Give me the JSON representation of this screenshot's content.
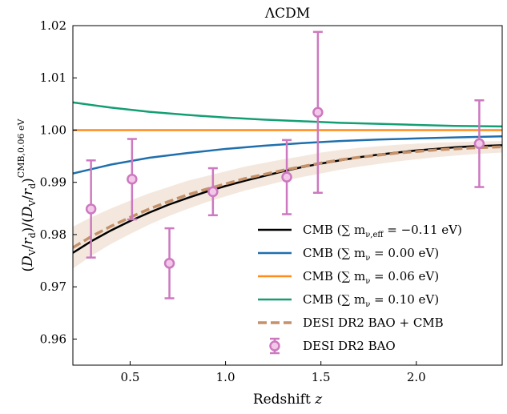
{
  "chart_data": {
    "type": "line",
    "title": "ΛCDM",
    "xlabel": "Redshift z",
    "ylabel": "(D_V/r_d)/(D_V/r_d)^CMB,0.06 eV",
    "xlim": [
      0.2,
      2.45
    ],
    "ylim": [
      0.955,
      1.02
    ],
    "xticks": [
      0.5,
      1.0,
      1.5,
      2.0
    ],
    "xtick_labels": [
      "0.5",
      "1.0",
      "1.5",
      "2.0"
    ],
    "yticks": [
      0.96,
      0.97,
      0.98,
      0.99,
      1.0,
      1.01,
      1.02
    ],
    "ytick_labels": [
      "0.96",
      "0.97",
      "0.98",
      "0.99",
      "1.00",
      "1.01",
      "1.02"
    ],
    "legend_position": "lower-right",
    "series": [
      {
        "name": "CMB (∑ m_ν,eff = −0.11 eV)",
        "legend_label": "CMB (∑ m",
        "legend_sub": "ν,eff",
        "legend_rest": " = −0.11 eV)",
        "color": "#000000",
        "style": "solid",
        "x": [
          0.2,
          0.3,
          0.4,
          0.5,
          0.6,
          0.7,
          0.8,
          0.9,
          1.0,
          1.1,
          1.2,
          1.3,
          1.4,
          1.5,
          1.6,
          1.7,
          1.8,
          1.9,
          2.0,
          2.1,
          2.2,
          2.3,
          2.45
        ],
        "y": [
          0.9765,
          0.9788,
          0.9808,
          0.9826,
          0.9842,
          0.9857,
          0.987,
          0.9882,
          0.9893,
          0.9903,
          0.9912,
          0.9921,
          0.9929,
          0.9936,
          0.9942,
          0.9948,
          0.9953,
          0.9957,
          0.9961,
          0.9964,
          0.9967,
          0.9969,
          0.9971
        ]
      },
      {
        "name": "CMB (∑ m_ν = 0.00 eV)",
        "legend_label": "CMB (∑ m",
        "legend_sub": "ν",
        "legend_rest": " = 0.00 eV)",
        "color": "#1f6fad",
        "style": "solid",
        "x": [
          0.2,
          0.4,
          0.6,
          0.8,
          1.0,
          1.2,
          1.4,
          1.6,
          1.8,
          2.0,
          2.2,
          2.45
        ],
        "y": [
          0.9917,
          0.9934,
          0.9947,
          0.9956,
          0.9964,
          0.997,
          0.9975,
          0.9979,
          0.9982,
          0.9984,
          0.9986,
          0.9988
        ]
      },
      {
        "name": "CMB (∑ m_ν = 0.06 eV)",
        "legend_label": "CMB (∑ m",
        "legend_sub": "ν",
        "legend_rest": " = 0.06 eV)",
        "color": "#ff8c1a",
        "style": "solid",
        "x": [
          0.2,
          2.45
        ],
        "y": [
          1.0,
          1.0
        ]
      },
      {
        "name": "CMB (∑ m_ν = 0.10 eV)",
        "legend_label": "CMB (∑ m",
        "legend_sub": "ν",
        "legend_rest": " = 0.10 eV)",
        "color": "#139e74",
        "style": "solid",
        "x": [
          0.2,
          0.4,
          0.6,
          0.8,
          1.0,
          1.2,
          1.4,
          1.6,
          1.8,
          2.0,
          2.2,
          2.45
        ],
        "y": [
          1.0053,
          1.0043,
          1.0035,
          1.0029,
          1.0024,
          1.002,
          1.0017,
          1.0014,
          1.0012,
          1.001,
          1.0008,
          1.0007
        ]
      },
      {
        "name": "DESI DR2 BAO + CMB",
        "legend_label": "DESI DR2 BAO + CMB",
        "color": "#c4916a",
        "style": "dashed",
        "band_color": "#f1e2d6",
        "x": [
          0.2,
          0.3,
          0.4,
          0.5,
          0.6,
          0.7,
          0.8,
          0.9,
          1.0,
          1.1,
          1.2,
          1.3,
          1.4,
          1.5,
          1.6,
          1.7,
          1.8,
          1.9,
          2.0,
          2.1,
          2.2,
          2.3,
          2.45
        ],
        "y": [
          0.9775,
          0.9797,
          0.9816,
          0.9833,
          0.9849,
          0.9863,
          0.9876,
          0.9887,
          0.9897,
          0.9907,
          0.9915,
          0.9923,
          0.993,
          0.9937,
          0.9943,
          0.9948,
          0.9952,
          0.9956,
          0.9959,
          0.9962,
          0.9964,
          0.9966,
          0.9968
        ],
        "y_low": [
          0.9735,
          0.976,
          0.9782,
          0.9801,
          0.9819,
          0.9835,
          0.9849,
          0.9862,
          0.9873,
          0.9884,
          0.9893,
          0.9902,
          0.991,
          0.9917,
          0.9924,
          0.993,
          0.9935,
          0.994,
          0.9944,
          0.9948,
          0.9951,
          0.9954,
          0.9957
        ],
        "y_high": [
          0.9815,
          0.9834,
          0.985,
          0.9865,
          0.9879,
          0.9891,
          0.9903,
          0.9912,
          0.9921,
          0.993,
          0.9937,
          0.9944,
          0.995,
          0.9957,
          0.9962,
          0.9966,
          0.9969,
          0.9972,
          0.9974,
          0.9976,
          0.9977,
          0.9978,
          0.9979
        ]
      }
    ],
    "points": {
      "name": "DESI DR2 BAO",
      "legend_label": "DESI DR2 BAO",
      "color": "#cc79c0",
      "face_color": "#f2c7e8",
      "data": [
        {
          "x": 0.295,
          "y": 0.9849,
          "err": 0.0093
        },
        {
          "x": 0.51,
          "y": 0.9906,
          "err": 0.0077
        },
        {
          "x": 0.706,
          "y": 0.9745,
          "err": 0.0067
        },
        {
          "x": 0.934,
          "y": 0.9882,
          "err": 0.0045
        },
        {
          "x": 1.321,
          "y": 0.991,
          "err": 0.0071
        },
        {
          "x": 1.484,
          "y": 1.0034,
          "err": 0.0154
        },
        {
          "x": 2.33,
          "y": 0.9974,
          "err": 0.0083
        }
      ]
    }
  }
}
